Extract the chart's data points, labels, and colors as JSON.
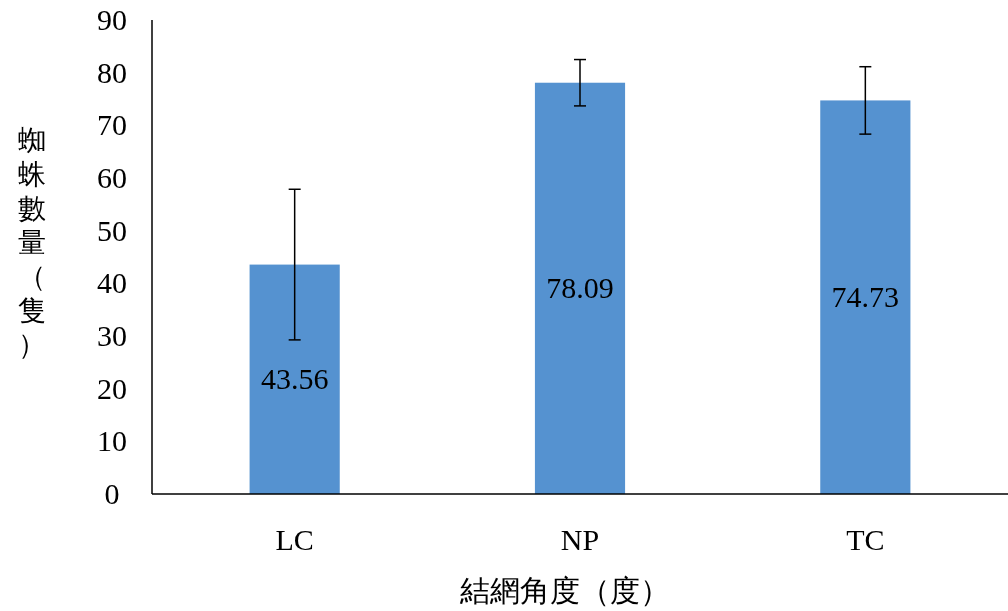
{
  "chart_data": {
    "type": "bar",
    "xlabel": "結網角度（度）",
    "ylabel": "蜘蛛數量（隻）",
    "categories": [
      "LC",
      "NP",
      "TC"
    ],
    "values": [
      43.56,
      78.09,
      74.73
    ],
    "errors": [
      14.3,
      4.4,
      6.4
    ],
    "color": "#5592d0",
    "ylim": [
      0,
      90
    ],
    "yticks": [
      0,
      10,
      20,
      30,
      40,
      50,
      60,
      70,
      80,
      90
    ],
    "data_labels": true
  }
}
